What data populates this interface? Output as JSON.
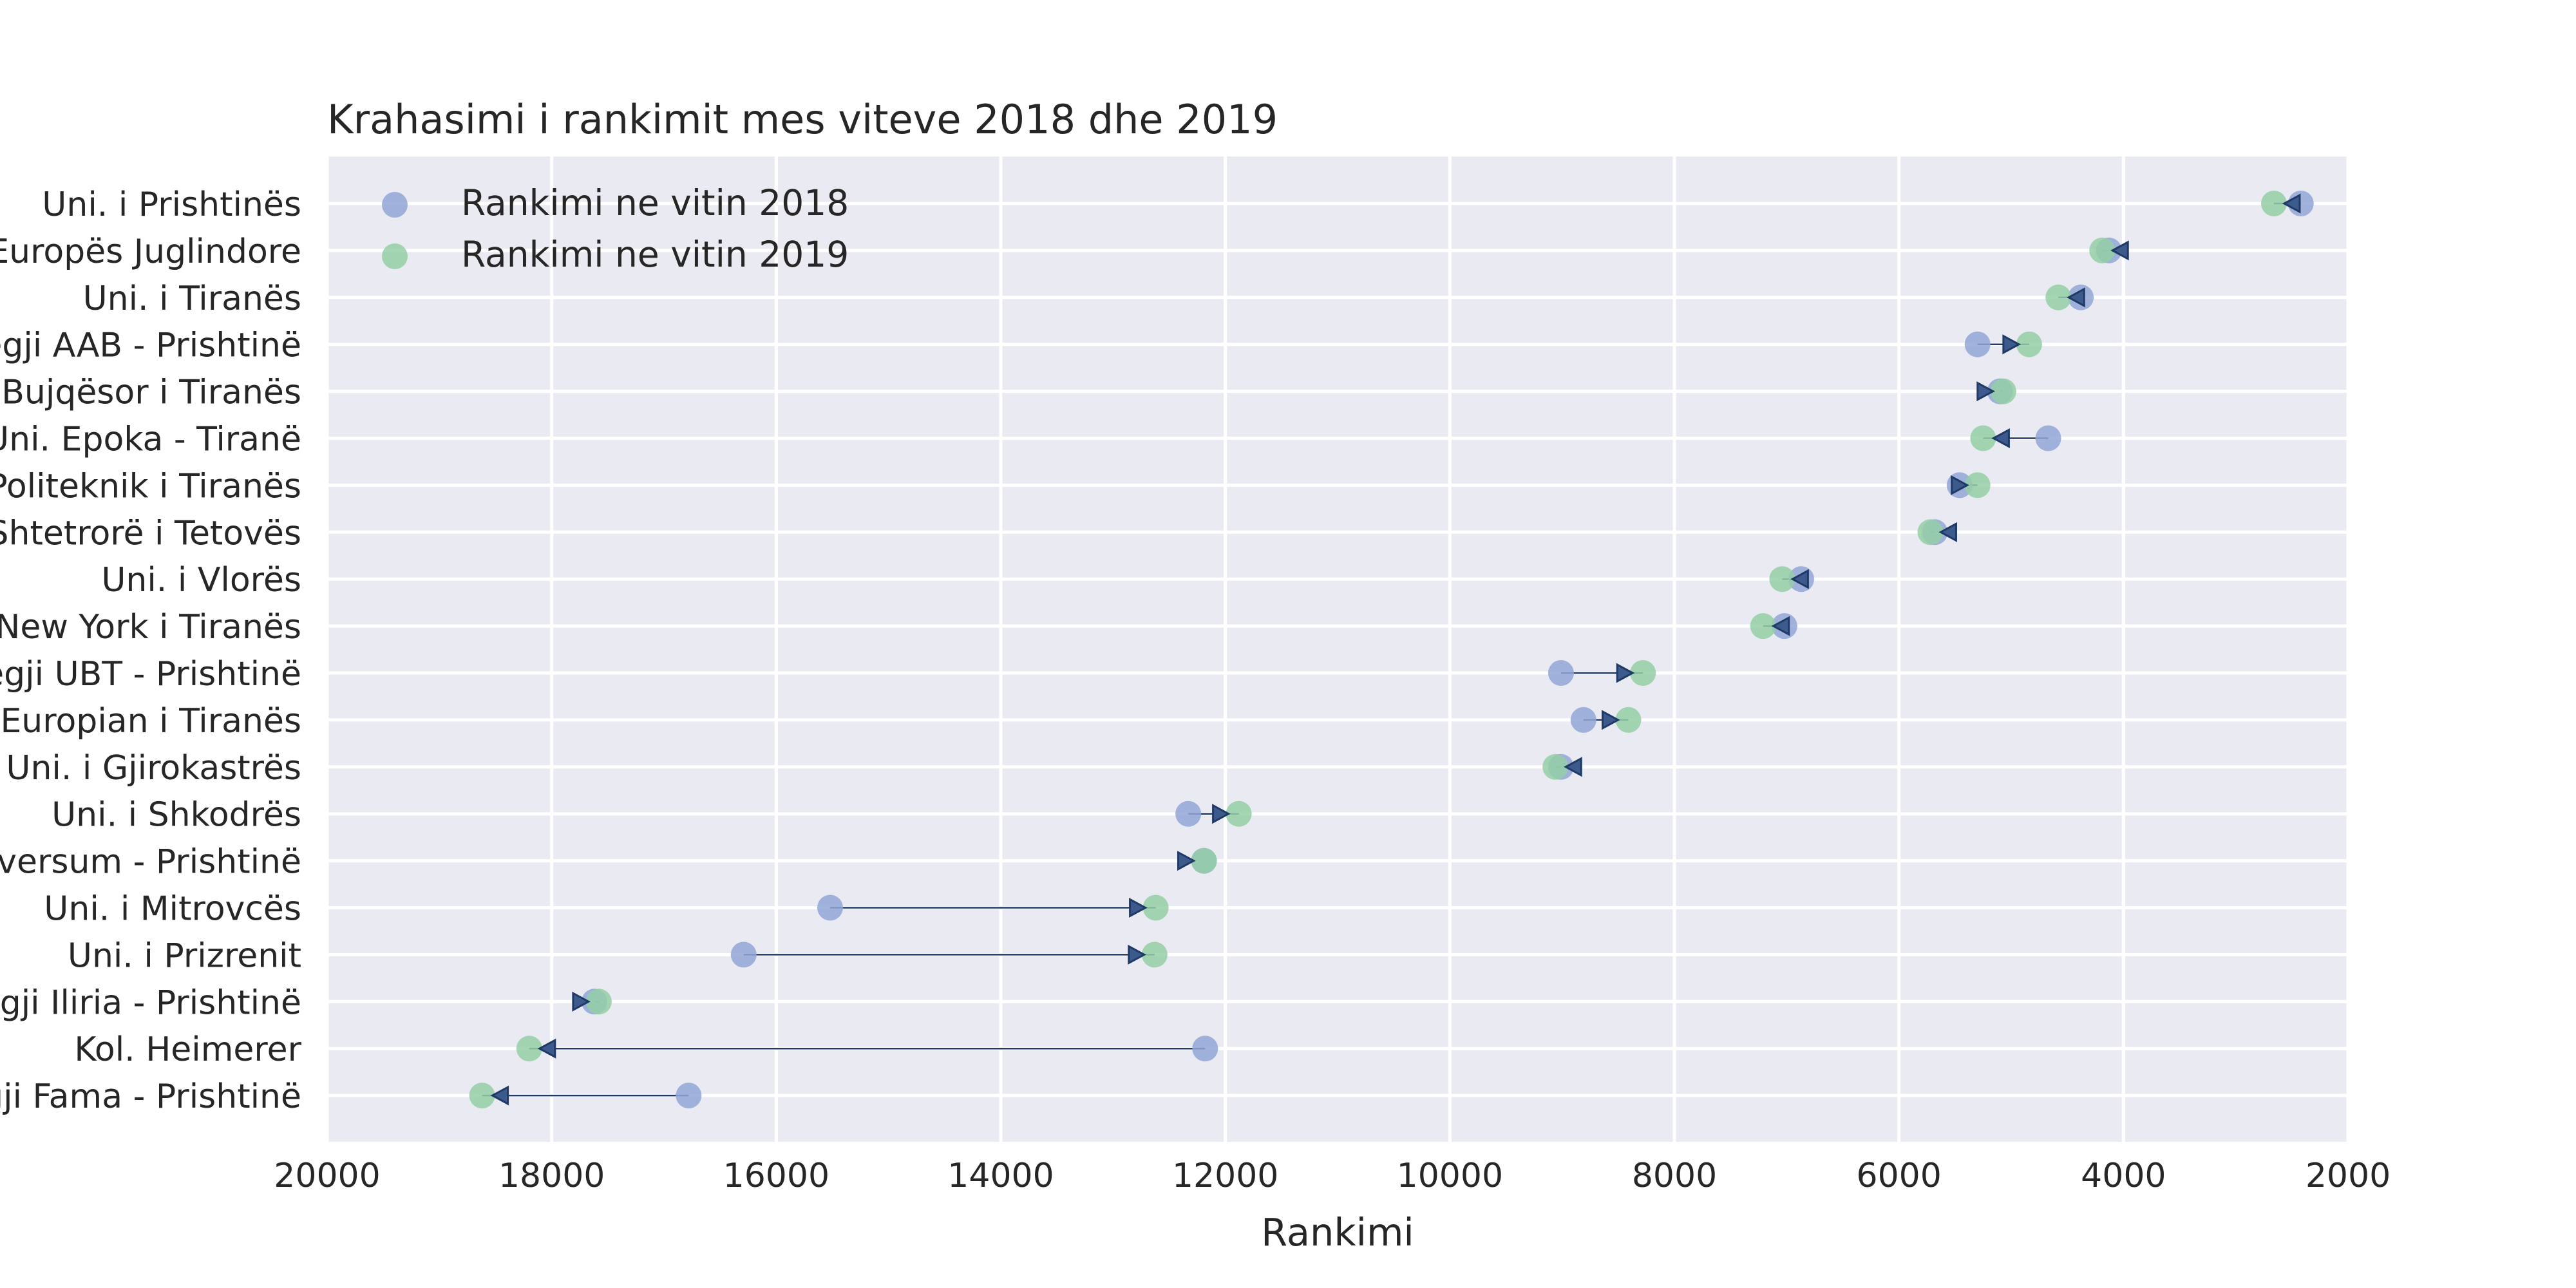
{
  "chart_data": {
    "type": "scatter",
    "title": "Krahasimi i rankimit mes viteve 2018 dhe 2019",
    "xlabel": "Rankimi",
    "ylabel": "",
    "xlim": [
      20000,
      2000
    ],
    "x_inverted": true,
    "x_ticks": [
      "20000",
      "18000",
      "16000",
      "14000",
      "12000",
      "10000",
      "8000",
      "6000",
      "4000",
      "2000"
    ],
    "grid": true,
    "legend_position": "top-left",
    "categories": [
      "Uni. i Prishtinës",
      "Uni. i Europës Juglindore",
      "Uni. i Tiranës",
      "Kolegji AAB - Prishtinë",
      "Uni. Bujqësor i Tiranës",
      "Uni. Epoka - Tiranë",
      "Uni. Politeknik i Tiranës",
      "Uni. Shtetrorë i Tetovës",
      "Uni. i Vlorës",
      "Uni. New York i Tiranës",
      "Kolegji UBT - Prishtinë",
      "Uni. Europian i Tiranës",
      "Uni. i Gjirokastrës",
      "Uni. i Shkodrës",
      "Kolegji Universum - Prishtinë",
      "Uni. i Mitrovcës ",
      "Uni. i Prizrenit",
      "Kolegji Iliria - Prishtinë",
      "Kol. Heimerer",
      "Kolegji Fama - Prishtinë"
    ],
    "series": [
      {
        "name": "Rankimi ne vitin 2018",
        "color": "#92a6d6",
        "values": [
          2420,
          4130,
          4380,
          5300,
          5100,
          4670,
          5460,
          5680,
          6870,
          7020,
          9010,
          8810,
          9010,
          12330,
          12190,
          15520,
          16290,
          17620,
          12180,
          16780
        ]
      },
      {
        "name": "Rankimi ne vitin 2019",
        "color": "#94cfa6",
        "values": [
          2660,
          4190,
          4580,
          4840,
          5070,
          5250,
          5300,
          5720,
          7040,
          7210,
          8280,
          8410,
          9060,
          11880,
          12190,
          12620,
          12630,
          17580,
          18200,
          18620
        ]
      }
    ],
    "arrow_color": "#1f3a66"
  }
}
